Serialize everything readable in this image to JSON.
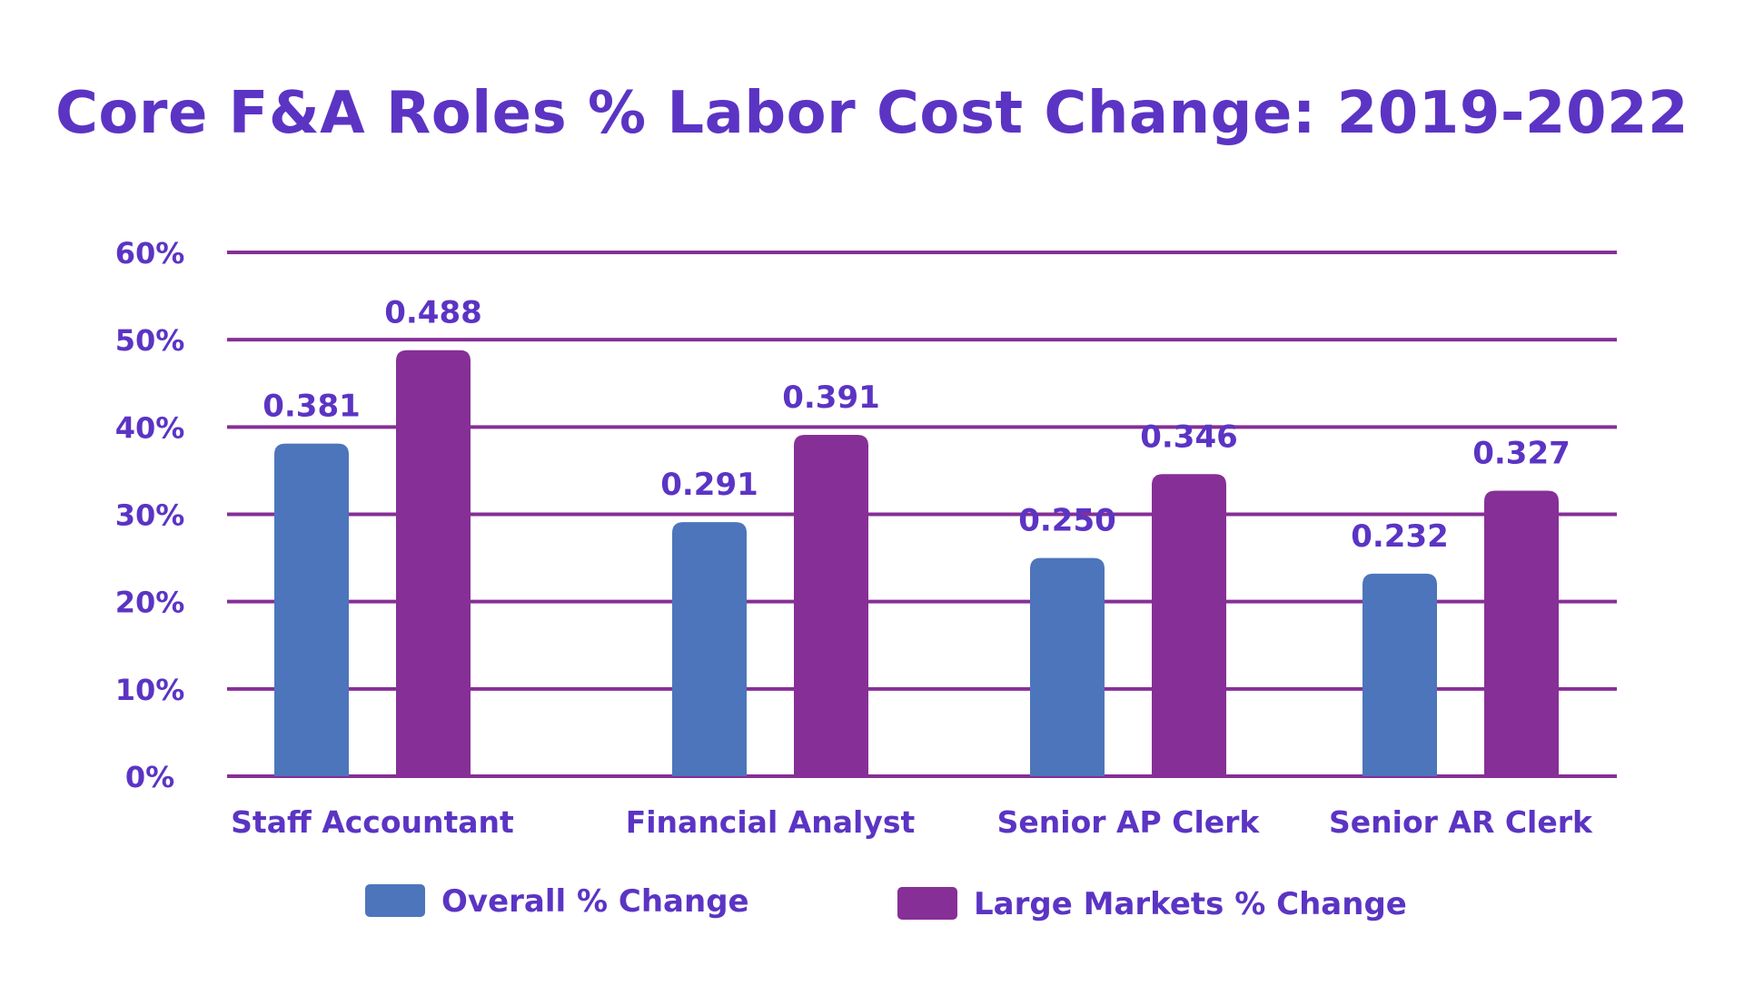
{
  "chart_data": {
    "type": "bar",
    "title": "Core F&A Roles % Labor Cost Change: 2019-2022",
    "xlabel": "",
    "ylabel": "",
    "categories": [
      "Staff Accountant",
      "Financial Analyst",
      "Senior AP Clerk",
      "Senior AR Clerk"
    ],
    "series": [
      {
        "name": "Overall % Change",
        "color": "#4d75bb",
        "values": [
          0.381,
          0.291,
          0.25,
          0.232
        ],
        "labels": [
          "0.381",
          "0.291",
          "0.250",
          "0.232"
        ]
      },
      {
        "name": "Large Markets % Change",
        "color": "#862f96",
        "values": [
          0.488,
          0.391,
          0.346,
          0.327
        ],
        "labels": [
          "0.488",
          "0.391",
          "0.346",
          "0.327"
        ]
      }
    ],
    "yticks": [
      0,
      0.1,
      0.2,
      0.3,
      0.4,
      0.5,
      0.6
    ],
    "ytick_labels": [
      "0%",
      "10%",
      "20%",
      "30%",
      "40%",
      "50%",
      "60%"
    ],
    "ylim": [
      0,
      0.6
    ],
    "grid": true,
    "legend_position": "bottom",
    "colors": {
      "text": "#5b34c4",
      "gridline": "#862f96"
    }
  }
}
